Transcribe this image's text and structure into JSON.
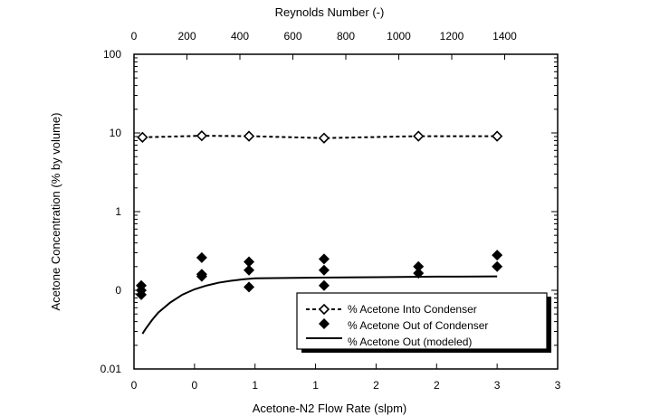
{
  "chart_data": {
    "type": "scatter",
    "title": "",
    "xlabel": "Acetone-N2 Flow Rate (slpm)",
    "x2label": "Reynolds Number (-)",
    "ylabel": "Acetone Concentration (% by volume)",
    "yscale": "log",
    "xlim": [
      0,
      3.5
    ],
    "x2lim": [
      0,
      1600
    ],
    "ylim": [
      0.01,
      100
    ],
    "x_tick_values": [
      0,
      0.5,
      1,
      1.5,
      2,
      2.5,
      3,
      3.5
    ],
    "x_tick_labels": [
      "0",
      "0",
      "1",
      "1",
      "2",
      "2",
      "3",
      "3"
    ],
    "x2_tick_values": [
      0,
      200,
      400,
      600,
      800,
      1000,
      1200,
      1400
    ],
    "x2_tick_labels": [
      "0",
      "200",
      "400",
      "600",
      "800",
      "1000",
      "1200",
      "1400"
    ],
    "y_tick_values": [
      0.01,
      0.1,
      1,
      10,
      100
    ],
    "y_tick_labels": [
      "0.01",
      "0",
      "1",
      "10",
      "100"
    ],
    "grid": false,
    "legend_position": "bottom-right",
    "series": [
      {
        "name": "% Acetone Into Condenser",
        "style": "dashed-line-open-diamond",
        "x": [
          0.07,
          0.56,
          0.95,
          1.57,
          2.35,
          3.0
        ],
        "y": [
          8.8,
          9.2,
          9.1,
          8.6,
          9.1,
          9.1
        ]
      },
      {
        "name": "% Acetone Out of Condenser",
        "style": "filled-diamond",
        "x": [
          0.06,
          0.06,
          0.06,
          0.56,
          0.56,
          0.56,
          0.95,
          0.95,
          0.95,
          1.57,
          1.57,
          1.57,
          2.35,
          2.35,
          3.0,
          3.0
        ],
        "y": [
          0.115,
          0.1,
          0.088,
          0.26,
          0.16,
          0.15,
          0.23,
          0.18,
          0.11,
          0.25,
          0.18,
          0.115,
          0.2,
          0.165,
          0.28,
          0.2
        ]
      },
      {
        "name": "% Acetone Out (modeled)",
        "style": "solid-line",
        "x": [
          0.07,
          0.1,
          0.15,
          0.2,
          0.3,
          0.4,
          0.5,
          0.6,
          0.7,
          0.8,
          0.9,
          1.0,
          1.5,
          2.0,
          2.5,
          3.0
        ],
        "y": [
          0.028,
          0.033,
          0.042,
          0.052,
          0.07,
          0.088,
          0.103,
          0.115,
          0.125,
          0.132,
          0.138,
          0.142,
          0.145,
          0.147,
          0.149,
          0.15
        ]
      }
    ]
  },
  "colors": {
    "axis": "#000000",
    "markers": "#000000",
    "background": "#ffffff"
  }
}
